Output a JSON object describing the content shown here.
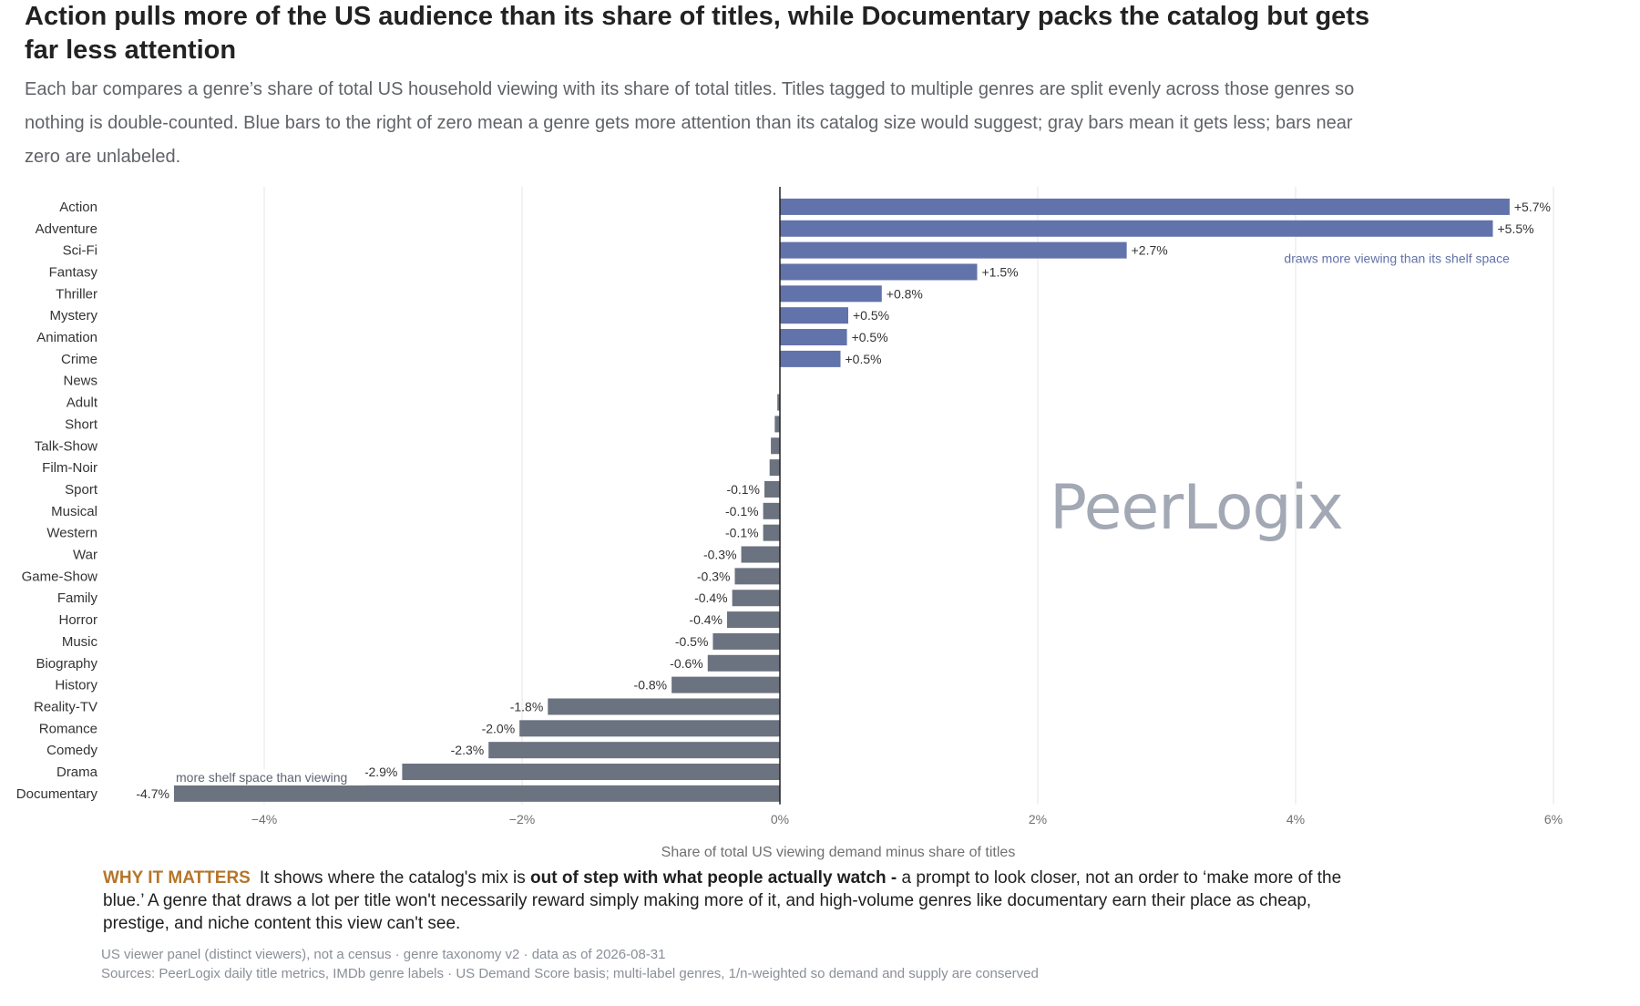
{
  "header": {
    "title": "Action pulls more of the US audience than its share of titles, while Documentary packs the catalog but gets far less attention",
    "subtitle": "Each bar compares a genre’s share of total US household viewing with its share of total titles. Titles tagged to multiple genres are split evenly across those genres so nothing is double-counted. Blue bars to the right of zero mean a genre gets more attention than its catalog size would suggest; gray bars mean it gets less; bars near zero are unlabeled."
  },
  "watermark": "PeerLogix",
  "chart_data": {
    "type": "bar",
    "orientation": "horizontal",
    "categories": [
      "Action",
      "Adventure",
      "Sci-Fi",
      "Fantasy",
      "Thriller",
      "Mystery",
      "Animation",
      "Crime",
      "News",
      "Adult",
      "Short",
      "Talk-Show",
      "Film-Noir",
      "Sport",
      "Musical",
      "Western",
      "War",
      "Game-Show",
      "Family",
      "Horror",
      "Music",
      "Biography",
      "History",
      "Reality-TV",
      "Romance",
      "Comedy",
      "Drama",
      "Documentary"
    ],
    "values": [
      5.66,
      5.53,
      2.69,
      1.53,
      0.79,
      0.53,
      0.52,
      0.47,
      0.0,
      -0.02,
      -0.04,
      -0.07,
      -0.08,
      -0.12,
      -0.13,
      -0.13,
      -0.3,
      -0.35,
      -0.37,
      -0.41,
      -0.52,
      -0.56,
      -0.84,
      -1.8,
      -2.02,
      -2.26,
      -2.93,
      -4.7
    ],
    "value_labels": [
      "+5.7%",
      "+5.5%",
      "+2.7%",
      "+1.5%",
      "+0.8%",
      "+0.5%",
      "+0.5%",
      "+0.5%",
      "",
      "",
      "",
      "",
      "",
      "-0.1%",
      "-0.1%",
      "-0.1%",
      "-0.3%",
      "-0.3%",
      "-0.4%",
      "-0.4%",
      "-0.5%",
      "-0.6%",
      "-0.8%",
      "-1.8%",
      "-2.0%",
      "-2.3%",
      "-2.9%",
      "-4.7%"
    ],
    "xlim": [
      -6,
      6
    ],
    "xticks": [
      -4,
      -2,
      0,
      2,
      4,
      6
    ],
    "xtick_labels": [
      "−4%",
      "−2%",
      "0%",
      "2%",
      "4%",
      "6%"
    ],
    "xlabel": "Share of total US viewing demand minus share of titles",
    "grid": true,
    "colors": {
      "positive": "#6272aa",
      "negative": "#6b7280",
      "zero_line": "#222222",
      "grid": "#e6e6e6"
    },
    "annotations": {
      "positive": "draws more viewing than its shelf space",
      "negative": "more shelf space than viewing"
    }
  },
  "why": {
    "label": "WHY IT MATTERS",
    "text_before": "It shows where the catalog's mix is ",
    "bold": "out of step with what people actually watch -",
    "text_after": " a prompt to look closer, not an order to ‘make more of the blue.’ A genre that draws a lot per title won't necessarily reward simply making more of it, and high-volume genres like documentary earn their place as cheap, prestige, and niche content this view can't see."
  },
  "footer": {
    "line1": "US viewer panel (distinct viewers), not a census · genre taxonomy v2 · data as of 2026-08-31",
    "line2": "Sources: PeerLogix daily title metrics, IMDb genre labels · US Demand Score basis; multi-label genres, 1/n-weighted so demand and supply are conserved"
  }
}
